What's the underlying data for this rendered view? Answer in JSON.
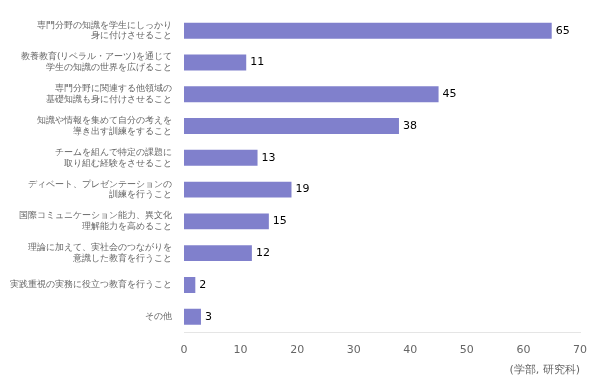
{
  "chart_data": {
    "type": "bar",
    "orientation": "horizontal",
    "categories": [
      "その他",
      "実践重視の実務に役立つ教育を行うこと",
      "理論に加えて、実社会のつながりを\n意識した教育を行うこと",
      "国際コミュニケーション能力、異文化\n理解能力を高めること",
      "ディベート、プレゼンテーションの\n訓練を行うこと",
      "チームを組んで特定の課題に\n取り組む経験をさせること",
      "知識や情報を集めて自分の考えを\n導き出す訓練をすること",
      "専門分野に関連する他領域の\n基礎知識も身に付けさせること",
      "教養教育(リベラル・アーツ)を通じて\n学生の知識の世界を広げること",
      "専門分野の知識を学生にしっかり\n身に付けさせること"
    ],
    "values": [
      3,
      2,
      12,
      15,
      19,
      13,
      38,
      45,
      11,
      65
    ],
    "color": "#8080cc",
    "xlabel": "(学部, 研究科)",
    "xlim": [
      0,
      70
    ],
    "xticks": [
      0,
      10,
      20,
      30,
      40,
      50,
      60,
      70
    ],
    "data_labels": true,
    "grid": false
  }
}
